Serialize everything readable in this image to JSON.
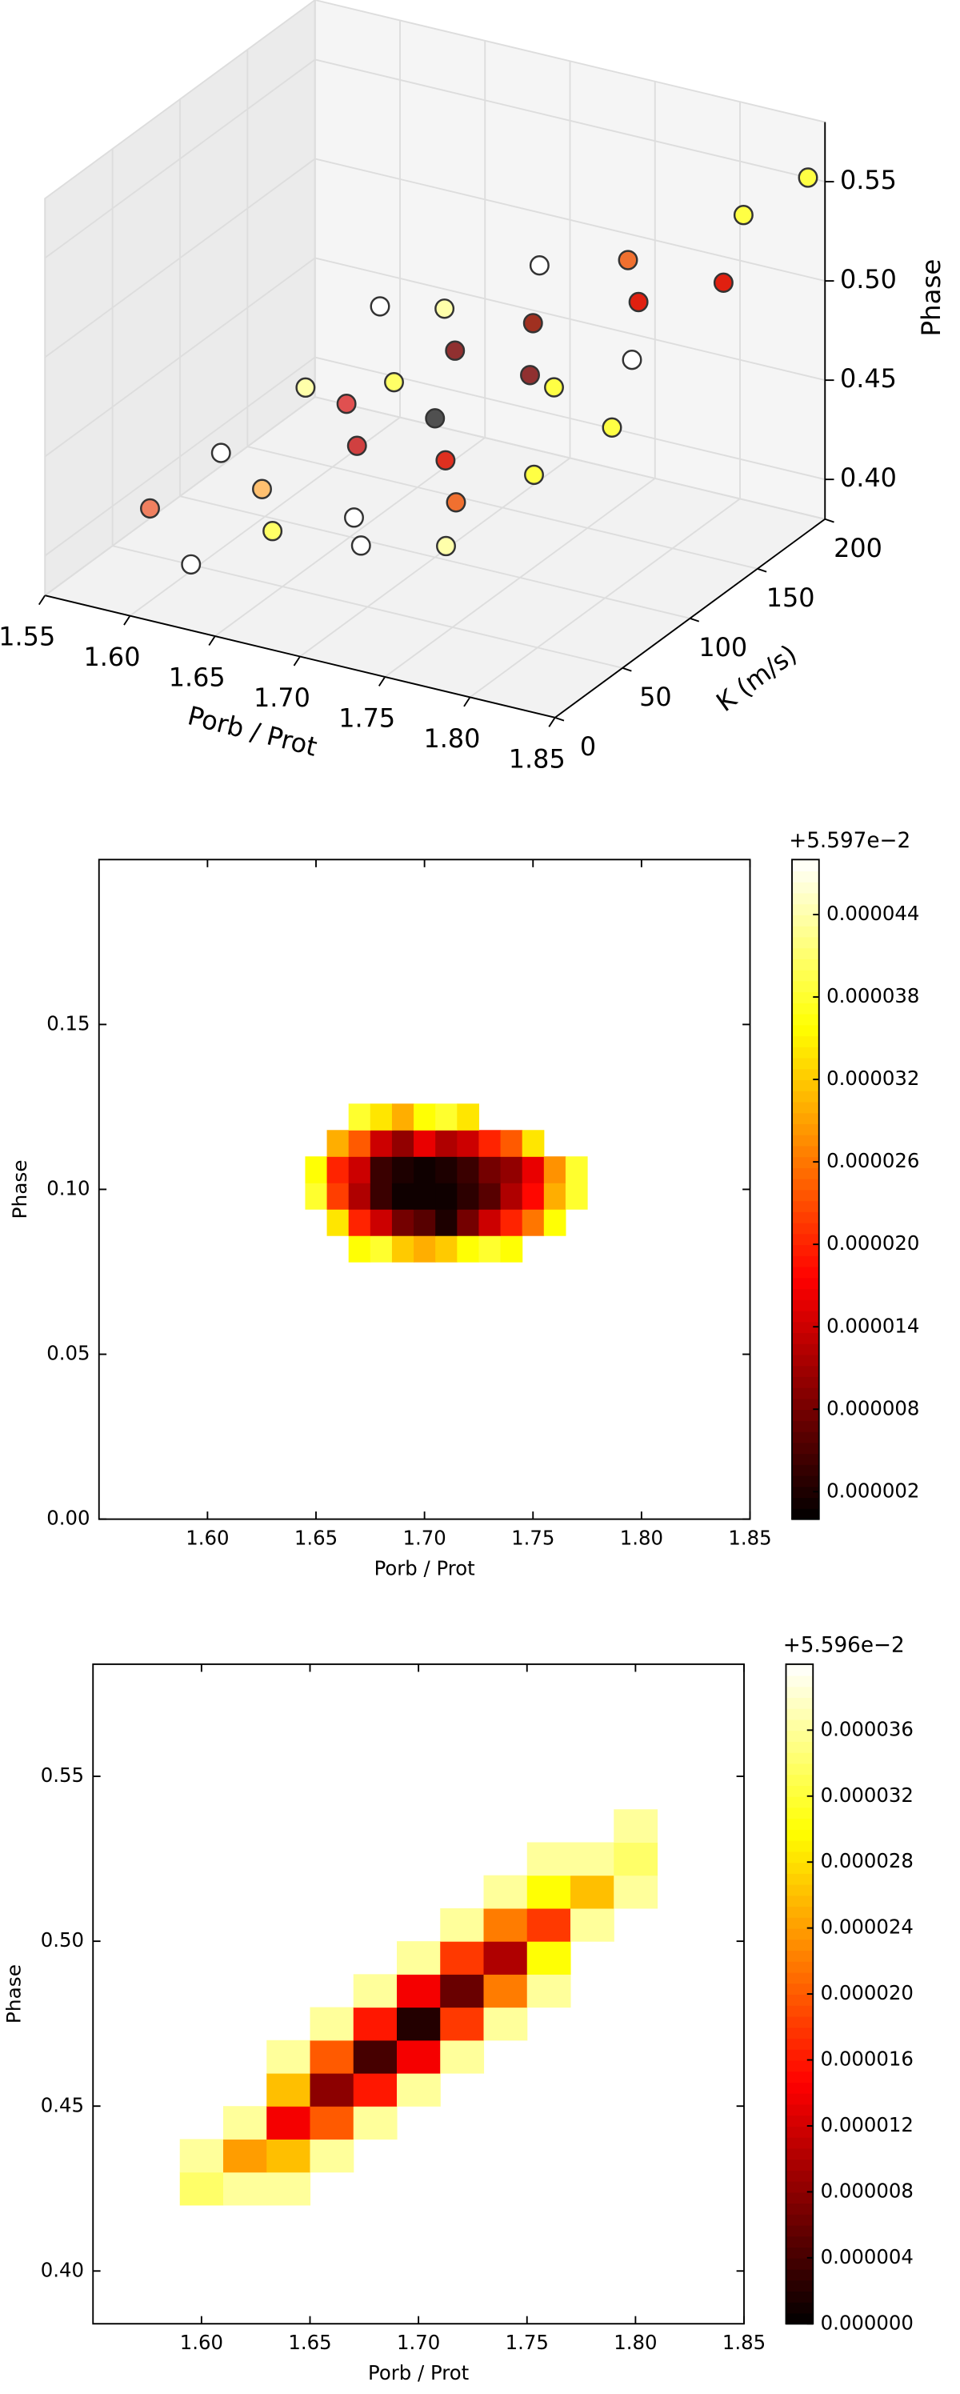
{
  "chart_data": [
    {
      "type": "scatter3d",
      "xlabel": "Porb / Prot",
      "ylabel": "K (m/s)",
      "zlabel": "Phase",
      "xlim": [
        1.55,
        1.85
      ],
      "ylim": [
        0,
        200
      ],
      "zlim": [
        0.38,
        0.58
      ],
      "xticks": [
        1.55,
        {
          "value": 1.6,
          "label": "1.60"
        },
        1.65,
        {
          "value": 1.7,
          "label": "1.70"
        },
        1.75,
        {
          "value": 1.8,
          "label": "1.80"
        },
        1.85
      ],
      "yticks": [
        0,
        50,
        100,
        150,
        200
      ],
      "zticks": [
        {
          "value": 0.4,
          "label": "0.40"
        },
        0.45,
        {
          "value": 0.5,
          "label": "0.50"
        },
        0.55
      ],
      "x": [
        1.58,
        1.59,
        1.6,
        1.62,
        1.63,
        1.64,
        1.65,
        1.66,
        1.67,
        1.68,
        1.69,
        1.7,
        1.7,
        1.71,
        1.72,
        1.73,
        1.74,
        1.75,
        1.76,
        1.77,
        1.78,
        1.79,
        1.8,
        1.81,
        1.82,
        1.83,
        1.84,
        1.77,
        1.66,
        1.62
      ],
      "y": [
        40,
        80,
        130,
        20,
        60,
        110,
        170,
        30,
        80,
        140,
        190,
        40,
        100,
        160,
        20,
        70,
        120,
        180,
        40,
        100,
        150,
        60,
        120,
        190,
        80,
        150,
        200,
        20,
        120,
        160
      ],
      "z": [
        0.41,
        0.42,
        0.43,
        0.4,
        0.42,
        0.44,
        0.46,
        0.42,
        0.44,
        0.46,
        0.48,
        0.43,
        0.45,
        0.47,
        0.43,
        0.45,
        0.47,
        0.5,
        0.45,
        0.48,
        0.5,
        0.46,
        0.49,
        0.53,
        0.48,
        0.52,
        0.55,
        0.44,
        0.45,
        0.46
      ],
      "colors": [
        "#f08060",
        "#ffffff",
        "#ffffaa",
        "#ffffff",
        "#ffc070",
        "#e05050",
        "#ffffaa",
        "#ffff66",
        "#d04040",
        "#903030",
        "#ffffff",
        "#ffffff",
        "#505050",
        "#a03020",
        "#ffffff",
        "#e03020",
        "#903030",
        "#f07030",
        "#f07030",
        "#ffff44",
        "#e02010",
        "#ffff44",
        "#ffffff",
        "#ffff44",
        "#ffff44",
        "#e02010",
        "#ffff44",
        "#ffffaa",
        "#ffff66",
        "#ffffff"
      ]
    },
    {
      "type": "heatmap",
      "xlabel": "Porb / Prot",
      "ylabel": "Phase",
      "colormap": "hot",
      "colorbar_offset": "+5.597e−2",
      "xlim": [
        1.55,
        1.85
      ],
      "ylim": [
        0,
        0.2
      ],
      "xticks": [
        {
          "value": 1.6,
          "label": "1.60"
        },
        1.65,
        {
          "value": 1.7,
          "label": "1.70"
        },
        1.75,
        {
          "value": 1.8,
          "label": "1.80"
        },
        1.85
      ],
      "yticks": [
        {
          "value": 0,
          "label": "0.00"
        },
        0.05,
        {
          "value": 0.1,
          "label": "0.10"
        },
        0.15
      ],
      "x_edges": [
        1.645,
        1.655,
        1.665,
        1.675,
        1.685,
        1.695,
        1.705,
        1.715,
        1.725,
        1.735,
        1.745,
        1.755,
        1.765,
        1.775
      ],
      "y_edges": [
        0.078,
        0.086,
        0.094,
        0.102,
        0.11,
        0.118,
        0.126
      ],
      "z": [
        [
          null,
          null,
          3.6e-05,
          3.8e-05,
          3.2e-05,
          3e-05,
          3.2e-05,
          3.6e-05,
          3.8e-05,
          3.6e-05,
          null,
          null,
          null
        ],
        [
          null,
          3.4e-05,
          2e-05,
          1.4e-05,
          8e-06,
          6e-06,
          2e-06,
          8e-06,
          1.4e-05,
          2e-05,
          2.6e-05,
          3.6e-05,
          null
        ],
        [
          3.8e-05,
          2.2e-05,
          1.2e-05,
          4e-06,
          1e-06,
          1e-06,
          1e-06,
          3e-06,
          6e-06,
          1.2e-05,
          1.8e-05,
          3e-05,
          3.8e-05
        ],
        [
          3.6e-05,
          2e-05,
          1.4e-05,
          4e-06,
          2e-06,
          1e-06,
          2e-06,
          4e-06,
          8e-06,
          1e-05,
          1.6e-05,
          2.8e-05,
          3.8e-05
        ],
        [
          null,
          3e-05,
          2.4e-05,
          1.4e-05,
          1e-05,
          1.6e-05,
          1.2e-05,
          1.4e-05,
          2e-05,
          2.4e-05,
          3.4e-05,
          null,
          null
        ],
        [
          null,
          null,
          3.8e-05,
          3.4e-05,
          3e-05,
          3.6e-05,
          3.8e-05,
          3.4e-05,
          null,
          null,
          null,
          null,
          null
        ]
      ],
      "clim": [
        0,
        4.8e-05
      ],
      "cticks": [
        2e-06,
        8e-06,
        1.4e-05,
        {
          "value": 2e-05,
          "label": "0.000020"
        },
        2.6e-05,
        3.2e-05,
        3.8e-05,
        4.4e-05
      ]
    },
    {
      "type": "heatmap",
      "xlabel": "Porb / Prot",
      "ylabel": "Phase",
      "colormap": "hot",
      "colorbar_offset": "+5.596e−2",
      "xlim": [
        1.55,
        1.85
      ],
      "ylim": [
        0.384,
        0.584
      ],
      "xticks": [
        {
          "value": 1.6,
          "label": "1.60"
        },
        1.65,
        {
          "value": 1.7,
          "label": "1.70"
        },
        1.75,
        {
          "value": 1.8,
          "label": "1.80"
        },
        1.85
      ],
      "yticks": [
        {
          "value": 0.4,
          "label": "0.40"
        },
        0.45,
        {
          "value": 0.5,
          "label": "0.50"
        },
        0.55
      ],
      "x_edges": [
        1.59,
        1.61,
        1.63,
        1.65,
        1.67,
        1.69,
        1.71,
        1.73,
        1.75,
        1.77,
        1.79,
        1.81
      ],
      "y_edges": [
        0.42,
        0.43,
        0.44,
        0.45,
        0.46,
        0.47,
        0.48,
        0.49,
        0.5,
        0.51,
        0.52,
        0.53,
        0.54
      ],
      "z": [
        [
          3.4e-05,
          3.6e-05,
          3.6e-05,
          null,
          null,
          null,
          null,
          null,
          null,
          null,
          null
        ],
        [
          3.6e-05,
          2.4e-05,
          2.6e-05,
          3.6e-05,
          null,
          null,
          null,
          null,
          null,
          null,
          null
        ],
        [
          null,
          3.6e-05,
          1.4e-05,
          2e-05,
          3.6e-05,
          null,
          null,
          null,
          null,
          null,
          null
        ],
        [
          null,
          null,
          2.6e-05,
          8e-06,
          1.6e-05,
          3.6e-05,
          null,
          null,
          null,
          null,
          null
        ],
        [
          null,
          null,
          3.6e-05,
          2e-05,
          4e-06,
          1.4e-05,
          3.6e-05,
          null,
          null,
          null,
          null
        ],
        [
          null,
          null,
          null,
          3.6e-05,
          1.6e-05,
          2e-06,
          1.8e-05,
          3.6e-05,
          null,
          null,
          null
        ],
        [
          null,
          null,
          null,
          null,
          3.6e-05,
          1.4e-05,
          6e-06,
          2.2e-05,
          3.6e-05,
          null,
          null
        ],
        [
          null,
          null,
          null,
          null,
          null,
          3.6e-05,
          1.8e-05,
          1e-05,
          3e-05,
          null,
          null
        ],
        [
          null,
          null,
          null,
          null,
          null,
          null,
          3.6e-05,
          2.2e-05,
          1.8e-05,
          3.6e-05,
          null
        ],
        [
          null,
          null,
          null,
          null,
          null,
          null,
          null,
          3.6e-05,
          3e-05,
          2.6e-05,
          3.6e-05
        ],
        [
          null,
          null,
          null,
          null,
          null,
          null,
          null,
          null,
          3.6e-05,
          3.6e-05,
          3.4e-05
        ],
        [
          null,
          null,
          null,
          null,
          null,
          null,
          null,
          null,
          null,
          null,
          3.6e-05
        ]
      ],
      "clim": [
        0,
        4e-05
      ],
      "cticks": [
        {
          "value": 0,
          "label": "0.000000"
        },
        4e-06,
        8e-06,
        1.2e-05,
        1.6e-05,
        {
          "value": 2e-05,
          "label": "0.000020"
        },
        2.4e-05,
        2.8e-05,
        3.2e-05,
        3.6e-05
      ]
    }
  ]
}
